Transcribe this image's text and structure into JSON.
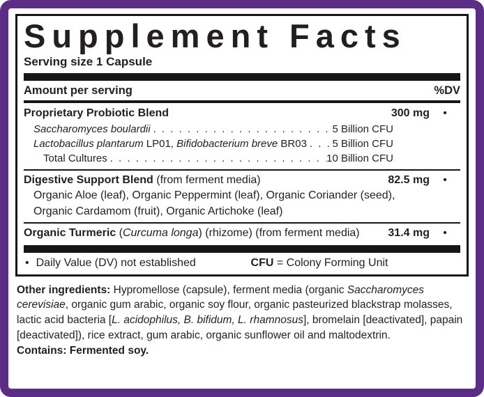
{
  "colors": {
    "purple": "#5b2d86",
    "ink": "#231f20",
    "rule": "#161616"
  },
  "panel": {
    "title": "Supplement Facts",
    "serving_size": "Serving size 1 Capsule",
    "amount_header": "Amount per serving",
    "dv_header": "%DV",
    "groups": [
      {
        "name": [
          {
            "t": "Proprietary Probiotic Blend",
            "s": "b"
          }
        ],
        "amount": "300 mg",
        "dv": "•",
        "subs": [
          {
            "name": [
              {
                "t": "Saccharomyces boulardii",
                "s": "i"
              }
            ],
            "leader": ". . . . . . . . . . . . . . . . . . . . . . . . . . . . . . . . . . . . . . . .",
            "value": "5 Billion CFU"
          },
          {
            "name": [
              {
                "t": "Lactobacillus plantarum",
                "s": "i"
              },
              {
                "t": " LP01, ",
                "s": "r"
              },
              {
                "t": "Bifidobacterium breve",
                "s": "i"
              },
              {
                "t": " BR03",
                "s": "r"
              }
            ],
            "leader": ". . . . . . . . . . . . . . . . . . . . . . . . . . . . . . . . . . . . . . . .",
            "value": "5 Billion CFU"
          },
          {
            "name": [
              {
                "t": "Total Cultures",
                "s": "r"
              }
            ],
            "leader": ". . . . . . . . . . . . . . . . . . . . . . . . . . . . . . . . . . . . . . . .",
            "value": "10 Billion CFU"
          }
        ]
      },
      {
        "name": [
          {
            "t": "Digestive Support Blend",
            "s": "b"
          },
          {
            "t": " (from ferment media)",
            "s": "r"
          }
        ],
        "amount": "82.5 mg",
        "dv": "•",
        "lines": [
          "Organic Aloe (leaf), Organic Peppermint (leaf), Organic Coriander (seed),",
          "Organic Cardamom (fruit), Organic Artichoke (leaf)"
        ]
      },
      {
        "name": [
          {
            "t": "Organic Turmeric",
            "s": "b"
          },
          {
            "t": " (",
            "s": "r"
          },
          {
            "t": "Curcuma longa",
            "s": "i"
          },
          {
            "t": ") (rhizome) (from ferment media)",
            "s": "r"
          }
        ],
        "amount": "31.4 mg",
        "dv": "•"
      }
    ],
    "footnote": {
      "bullet": "•",
      "left": "Daily Value (DV) not established",
      "right": [
        {
          "t": "CFU",
          "s": "b"
        },
        {
          "t": " = Colony Forming Unit",
          "s": "r"
        }
      ]
    }
  },
  "other_ingredients": [
    {
      "t": "Other ingredients: ",
      "s": "b"
    },
    {
      "t": "Hypromellose (capsule), ferment media (organic ",
      "s": "r"
    },
    {
      "t": "Saccharomyces cerevisiae",
      "s": "i"
    },
    {
      "t": ", organic gum arabic, organic soy flour, organic pasteurized blackstrap molasses, lactic acid bacteria [",
      "s": "r"
    },
    {
      "t": "L. acidophilus, B. bifidum, L. rhamnosus",
      "s": "i"
    },
    {
      "t": "], bromelain [deactivated], papain [deactivated]), rice extract, gum arabic, organic sunflower oil and maltodextrin.",
      "s": "r"
    }
  ],
  "contains": [
    {
      "t": "Contains: Fermented soy.",
      "s": "b"
    }
  ]
}
